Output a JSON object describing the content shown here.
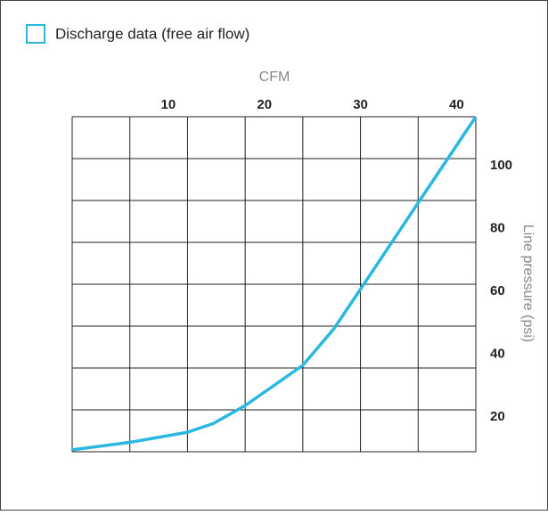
{
  "chart_data": {
    "type": "line",
    "x_label": "CFM",
    "y_label": "Line pressure (psi)",
    "series": [
      {
        "name": "Discharge data (free air flow)",
        "color": "#2bb8e0",
        "x": [
          0,
          6,
          12,
          14.7,
          18,
          24,
          27.2,
          30,
          36,
          42
        ],
        "values": [
          9.6,
          12,
          15.2,
          18,
          23.7,
          36.5,
          48,
          60.7,
          88.2,
          115.6
        ]
      }
    ],
    "xlim": [
      0,
      42
    ],
    "xticks": [
      10,
      20,
      30,
      40
    ],
    "ylim": [
      9,
      115.6
    ],
    "yticks": [
      20,
      40,
      60,
      80,
      100
    ],
    "grid": true
  }
}
